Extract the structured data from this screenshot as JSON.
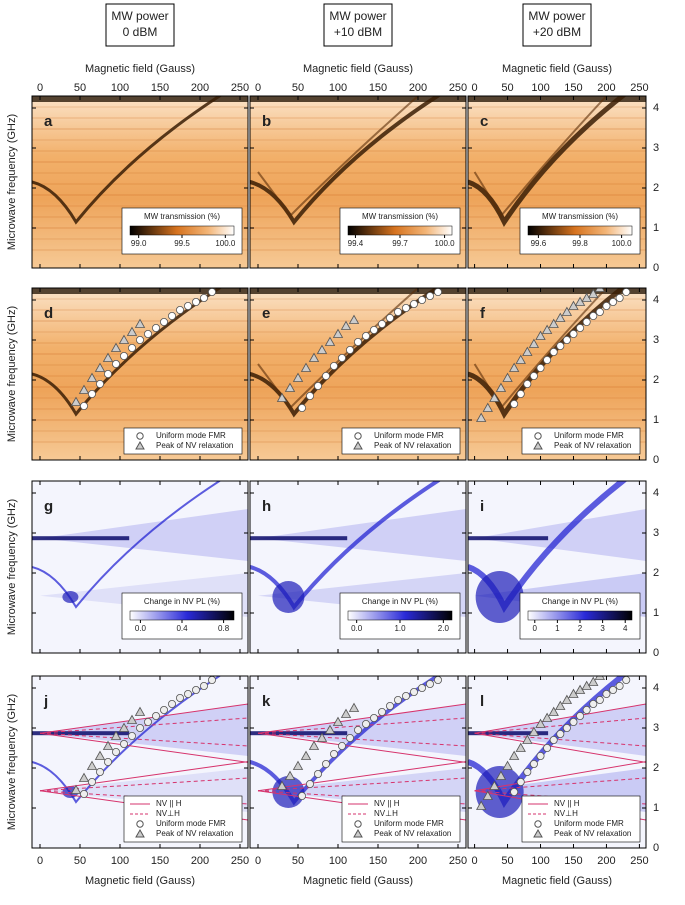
{
  "headers": [
    {
      "line1": "MW power",
      "line2": "0 dBM"
    },
    {
      "line1": "MW power",
      "line2": "+10 dBM"
    },
    {
      "line1": "MW power",
      "line2": "+20 dBM"
    }
  ],
  "chart_data": {
    "type": "heatmap-grid",
    "x_axis_label": "Magnetic field (Gauss)",
    "y_axis_label": "Microwave frequency (GHz)",
    "xlim": [
      -10,
      260
    ],
    "xticks": [
      0,
      50,
      100,
      150,
      200,
      250
    ],
    "ylim": [
      0,
      4.3
    ],
    "yticks": [
      0,
      1,
      2,
      3,
      4
    ],
    "panel_letters": [
      "a",
      "b",
      "c",
      "d",
      "e",
      "f",
      "g",
      "h",
      "i",
      "j",
      "k",
      "l"
    ],
    "transmission_colorbar": {
      "title": "MW transmission (%)",
      "columns": [
        {
          "lim": [
            98.9,
            100.1
          ],
          "ticks": [
            {
              "value": 99,
              "label": "99.0"
            },
            99.5,
            {
              "value": 100,
              "label": "100.0"
            }
          ]
        },
        {
          "lim": [
            99.35,
            100.05
          ],
          "ticks": [
            99.4,
            99.7,
            {
              "value": 100,
              "label": "100.0"
            }
          ]
        },
        {
          "lim": [
            99.55,
            100.05
          ],
          "ticks": [
            99.6,
            99.8,
            {
              "value": 100,
              "label": "100.0"
            }
          ]
        }
      ]
    },
    "pl_colorbar": {
      "title": "Change in NV PL (%)",
      "columns": [
        {
          "lim": [
            -0.1,
            0.9
          ],
          "ticks": [
            {
              "value": 0,
              "label": "0.0"
            },
            0.4,
            0.8
          ]
        },
        {
          "lim": [
            -0.2,
            2.2
          ],
          "ticks": [
            {
              "value": 0,
              "label": "0.0"
            },
            {
              "value": 1,
              "label": "1.0"
            },
            {
              "value": 2,
              "label": "2.0"
            }
          ]
        },
        {
          "lim": [
            -0.3,
            4.3
          ],
          "ticks": [
            0,
            1,
            2,
            3,
            4
          ]
        }
      ]
    },
    "markers": {
      "legend_circle": "Uniform mode FMR",
      "legend_triangle": "Peak of NV relaxation",
      "columns": [
        {
          "circles": {
            "x": [
              55,
              65,
              75,
              85,
              95,
              105,
              115,
              125,
              135,
              145,
              155,
              165,
              175,
              185,
              195,
              205,
              215
            ],
            "y": [
              1.35,
              1.65,
              1.9,
              2.15,
              2.4,
              2.6,
              2.8,
              3.0,
              3.15,
              3.3,
              3.45,
              3.6,
              3.75,
              3.85,
              3.95,
              4.05,
              4.2
            ]
          },
          "triangles": {
            "x": [
              45,
              55,
              65,
              75,
              85,
              95,
              105,
              115,
              125
            ],
            "y": [
              1.45,
              1.75,
              2.05,
              2.3,
              2.55,
              2.8,
              3.0,
              3.2,
              3.4
            ]
          }
        },
        {
          "circles": {
            "x": [
              55,
              65,
              75,
              85,
              95,
              105,
              115,
              125,
              135,
              145,
              155,
              165,
              175,
              185,
              195,
              205,
              215,
              225
            ],
            "y": [
              1.3,
              1.6,
              1.85,
              2.1,
              2.35,
              2.55,
              2.75,
              2.95,
              3.1,
              3.25,
              3.4,
              3.55,
              3.7,
              3.8,
              3.9,
              4.0,
              4.1,
              4.2
            ]
          },
          "triangles": {
            "x": [
              30,
              40,
              50,
              60,
              70,
              80,
              90,
              100,
              110,
              120
            ],
            "y": [
              1.55,
              1.8,
              2.05,
              2.3,
              2.55,
              2.75,
              2.95,
              3.15,
              3.35,
              3.5
            ]
          }
        },
        {
          "circles": {
            "x": [
              60,
              70,
              80,
              90,
              100,
              110,
              120,
              130,
              140,
              150,
              160,
              170,
              180,
              190,
              200,
              210,
              220,
              230
            ],
            "y": [
              1.4,
              1.65,
              1.9,
              2.1,
              2.3,
              2.5,
              2.7,
              2.85,
              3.0,
              3.15,
              3.3,
              3.45,
              3.6,
              3.7,
              3.85,
              3.95,
              4.05,
              4.2
            ]
          },
          "triangles": {
            "x": [
              10,
              20,
              30,
              40,
              50,
              60,
              70,
              80,
              90,
              100,
              110,
              120,
              130,
              140,
              150,
              160,
              170,
              180,
              190
            ],
            "y": [
              1.05,
              1.3,
              1.55,
              1.8,
              2.05,
              2.3,
              2.5,
              2.7,
              2.9,
              3.1,
              3.25,
              3.4,
              3.55,
              3.7,
              3.85,
              3.95,
              4.05,
              4.15,
              4.3
            ]
          }
        }
      ]
    },
    "nv_lines": {
      "legend_solid": "NV || H",
      "legend_dashed": "NV⊥H",
      "color": "#d6336c",
      "solid": [
        {
          "x": [
            0,
            260
          ],
          "y": [
            2.87,
            3.6
          ]
        },
        {
          "x": [
            0,
            260
          ],
          "y": [
            2.87,
            2.14
          ]
        },
        {
          "x": [
            0,
            260
          ],
          "y": [
            1.43,
            2.16
          ]
        },
        {
          "x": [
            0,
            260
          ],
          "y": [
            1.43,
            0.7
          ]
        }
      ],
      "dashed": [
        {
          "x": [
            0,
            260
          ],
          "y": [
            2.87,
            3.25
          ]
        },
        {
          "x": [
            0,
            260
          ],
          "y": [
            2.87,
            2.55
          ]
        },
        {
          "x": [
            0,
            260
          ],
          "y": [
            1.43,
            1.75
          ]
        },
        {
          "x": [
            0,
            260
          ],
          "y": [
            1.43,
            1.1
          ]
        }
      ]
    }
  }
}
